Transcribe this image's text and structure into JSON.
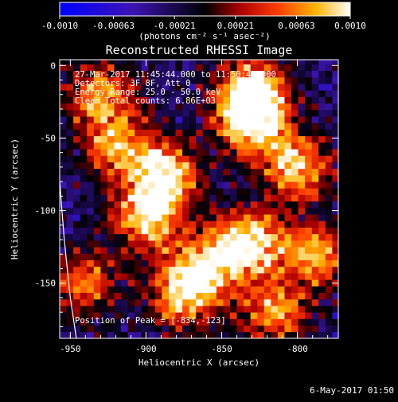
{
  "chart_data": {
    "type": "heatmap",
    "title": "Reconstructed RHESSI Image",
    "xlabel": "Heliocentric X (arcsec)",
    "ylabel": "Heliocentric Y (arcsec)",
    "xlim": [
      -957,
      -773
    ],
    "ylim": [
      -188,
      4
    ],
    "x_ticks": [
      -950,
      -900,
      -850,
      -800
    ],
    "x_tick_labels": [
      "-950",
      "-900",
      "-850",
      "-800"
    ],
    "y_ticks": [
      0,
      -50,
      -100,
      -150
    ],
    "y_tick_labels": [
      "0",
      "-50",
      "-100",
      "-150"
    ],
    "colorbar": {
      "range": [
        -0.001,
        0.001
      ],
      "ticks": [
        -0.001,
        -0.00063,
        -0.00021,
        0.00021,
        0.00063,
        0.001
      ],
      "tick_labels": [
        "-0.0010",
        "-0.00063",
        "-0.00021",
        "0.00021",
        "0.00063",
        "0.0010"
      ],
      "unit_label": "(photons cm⁻² s⁻¹ asec⁻²)"
    },
    "annotations": [
      "27-Mar-2017 11:45:44.000 to 11:50:44.000",
      "Detectors: 3F 8F, Att 0",
      "Energy Range: 25.0 - 50.0 keV",
      "Clean    Total counts: 6.86E+03"
    ],
    "peak_label": "Position of Peak = [-834,-123]",
    "peak": [
      -834,
      -123
    ],
    "limb_arc": [
      [
        -957,
        -80
      ],
      [
        -954,
        -120
      ],
      [
        -950,
        -160
      ],
      [
        -946,
        -188
      ]
    ],
    "sources": [
      {
        "x": -888,
        "y": -75,
        "intensity": 0.0009
      },
      {
        "x": -900,
        "y": -105,
        "intensity": 0.0007
      },
      {
        "x": -865,
        "y": -140,
        "intensity": 0.0006
      },
      {
        "x": -834,
        "y": -123,
        "intensity": 0.001
      },
      {
        "x": -830,
        "y": -18,
        "intensity": 0.0009
      },
      {
        "x": -830,
        "y": -40,
        "intensity": 0.0008
      },
      {
        "x": -800,
        "y": -70,
        "intensity": 0.0007
      },
      {
        "x": -790,
        "y": -130,
        "intensity": 0.0006
      },
      {
        "x": -930,
        "y": -20,
        "intensity": 0.0005
      },
      {
        "x": -920,
        "y": -55,
        "intensity": 0.0005
      },
      {
        "x": -875,
        "y": -160,
        "intensity": 0.0005
      },
      {
        "x": -815,
        "y": -170,
        "intensity": 0.0005
      },
      {
        "x": -940,
        "y": -150,
        "intensity": 0.0004
      }
    ],
    "grid": false
  },
  "footer": {
    "date": "6-May-2017 01:50"
  },
  "colors": {
    "background": "#000000",
    "foreground": "#ffffff"
  }
}
